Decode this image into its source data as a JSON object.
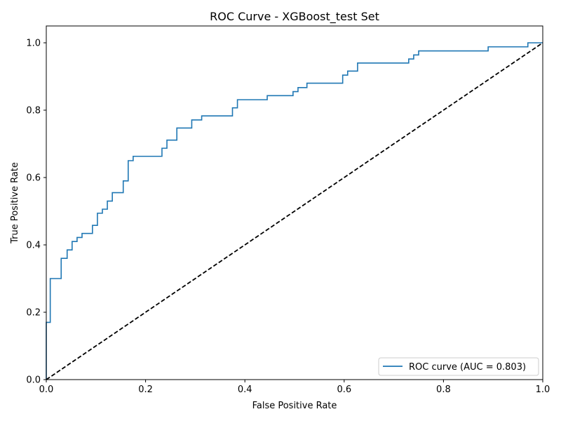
{
  "chart_data": {
    "type": "line",
    "title": "ROC Curve - XGBoost_test Set",
    "xlabel": "False Positive Rate",
    "ylabel": "True Positive Rate",
    "xlim": [
      0.0,
      1.0
    ],
    "ylim": [
      0.0,
      1.05
    ],
    "xticks": [
      0.0,
      0.2,
      0.4,
      0.6,
      0.8,
      1.0
    ],
    "yticks": [
      0.0,
      0.2,
      0.4,
      0.6,
      0.8,
      1.0
    ],
    "xtick_labels": [
      "0.0",
      "0.2",
      "0.4",
      "0.6",
      "0.8",
      "1.0"
    ],
    "ytick_labels": [
      "0.0",
      "0.2",
      "0.4",
      "0.6",
      "0.8",
      "1.0"
    ],
    "grid": false,
    "legend": {
      "position": "lower-right",
      "entries": [
        "ROC curve (AUC = 0.803)"
      ]
    },
    "series": [
      {
        "name": "ROC curve (AUC = 0.803)",
        "color": "#1f77b4",
        "style": "solid",
        "step": true,
        "x": [
          0.0,
          0.0,
          0.008,
          0.008,
          0.03,
          0.03,
          0.042,
          0.042,
          0.052,
          0.052,
          0.062,
          0.062,
          0.072,
          0.072,
          0.093,
          0.093,
          0.103,
          0.103,
          0.113,
          0.113,
          0.123,
          0.123,
          0.133,
          0.133,
          0.155,
          0.155,
          0.165,
          0.165,
          0.175,
          0.175,
          0.233,
          0.233,
          0.243,
          0.243,
          0.263,
          0.263,
          0.293,
          0.293,
          0.313,
          0.313,
          0.375,
          0.375,
          0.385,
          0.385,
          0.445,
          0.445,
          0.497,
          0.497,
          0.507,
          0.507,
          0.525,
          0.525,
          0.597,
          0.597,
          0.607,
          0.607,
          0.627,
          0.627,
          0.73,
          0.73,
          0.74,
          0.74,
          0.75,
          0.75,
          0.89,
          0.89,
          0.97,
          0.97,
          1.0
        ],
        "y": [
          0.0,
          0.17,
          0.17,
          0.3,
          0.3,
          0.36,
          0.36,
          0.385,
          0.385,
          0.41,
          0.41,
          0.422,
          0.422,
          0.434,
          0.434,
          0.458,
          0.458,
          0.494,
          0.494,
          0.506,
          0.506,
          0.53,
          0.53,
          0.555,
          0.555,
          0.59,
          0.59,
          0.65,
          0.65,
          0.663,
          0.663,
          0.687,
          0.687,
          0.711,
          0.711,
          0.747,
          0.747,
          0.771,
          0.771,
          0.783,
          0.783,
          0.807,
          0.807,
          0.831,
          0.831,
          0.843,
          0.843,
          0.855,
          0.855,
          0.867,
          0.867,
          0.88,
          0.88,
          0.904,
          0.904,
          0.916,
          0.916,
          0.94,
          0.94,
          0.952,
          0.952,
          0.964,
          0.964,
          0.976,
          0.976,
          0.988,
          0.988,
          1.0,
          1.0
        ]
      },
      {
        "color": "#000000",
        "style": "dashed",
        "x": [
          0.0,
          1.0
        ],
        "y": [
          0.0,
          1.0
        ]
      }
    ]
  }
}
